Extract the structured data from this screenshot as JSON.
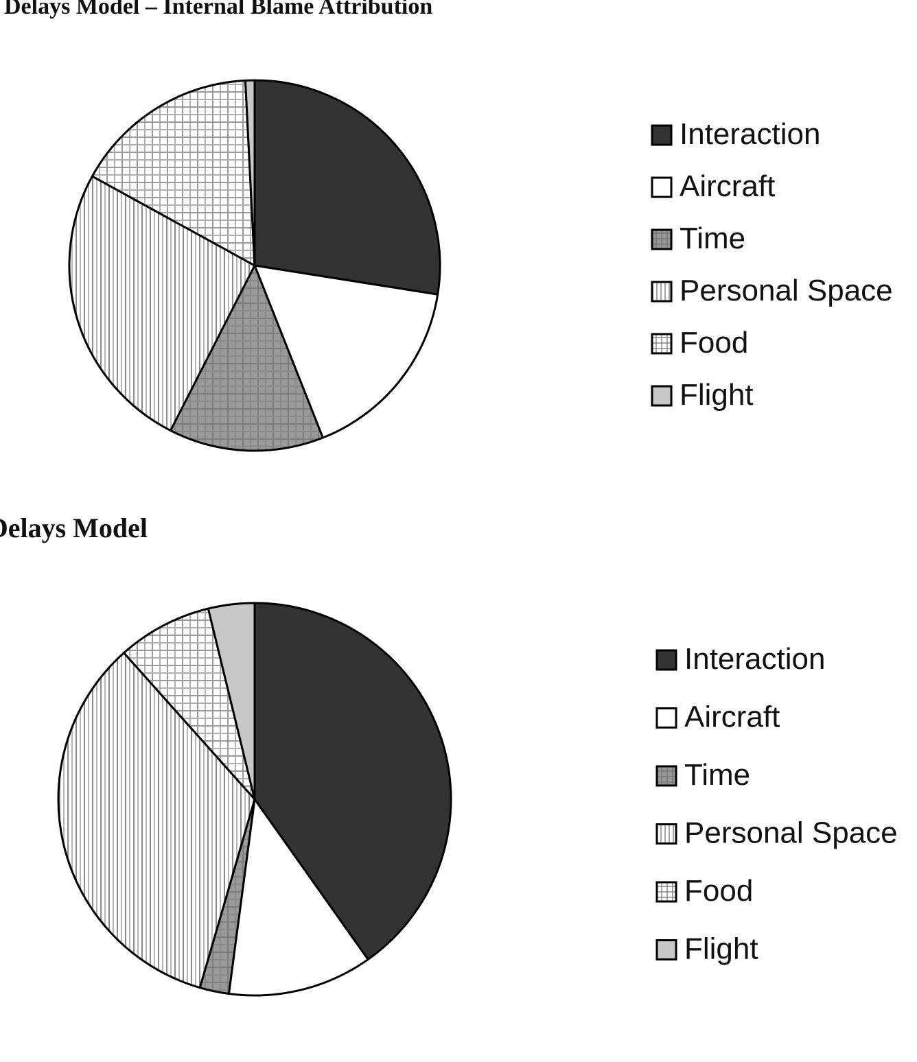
{
  "chart_data": [
    {
      "type": "pie",
      "title": "Delays Model – Internal Blame Attribution",
      "categories": [
        "Interaction",
        "Aircraft",
        "Time",
        "Personal Space",
        "Food",
        "Flight"
      ],
      "values": [
        27.5,
        16.5,
        13.5,
        25.5,
        16.2,
        0.8
      ],
      "unit": "percent (estimated)",
      "legend_position": "right"
    },
    {
      "type": "pie",
      "title": "Delays Model",
      "categories": [
        "Interaction",
        "Aircraft",
        "Time",
        "Personal Space",
        "Food",
        "Flight"
      ],
      "values": [
        40.2,
        11.9,
        2.4,
        33.9,
        7.8,
        3.8
      ],
      "unit": "percent (estimated)",
      "legend_position": "right"
    }
  ],
  "styles": {
    "Interaction": {
      "fill": "#333333",
      "pattern": "solid"
    },
    "Aircraft": {
      "fill": "#ffffff",
      "pattern": "solid"
    },
    "Time": {
      "fill": "#999999",
      "pattern": "grid-dark"
    },
    "Personal Space": {
      "fill": "#ffffff",
      "pattern": "vertical-lines"
    },
    "Food": {
      "fill": "#ffffff",
      "pattern": "grid-light"
    },
    "Flight": {
      "fill": "#c8c8c8",
      "pattern": "solid"
    }
  }
}
